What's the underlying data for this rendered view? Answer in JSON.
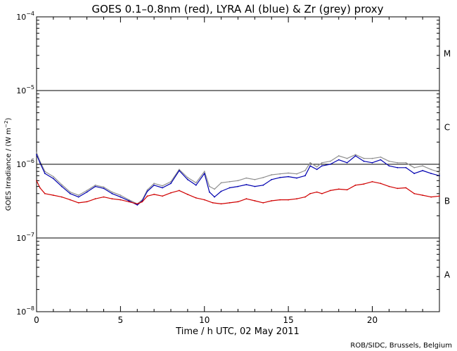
{
  "chart_data": {
    "type": "line",
    "title": "GOES 0.1–0.8nm (red), LYRA Al (blue) & Zr (grey) proxy",
    "xlabel": "Time / h UTC, 02 May 2011",
    "ylabel": "GOES Irradiance / (W m",
    "ylabel_exp": "−2",
    "ylabel_close": ")",
    "credit": "ROB/SIDC, Brussels, Belgium",
    "xlim": [
      0,
      24
    ],
    "ylim_log10": [
      -8,
      -4
    ],
    "yscale": "log",
    "x_ticks": [
      {
        "value": 0,
        "label": "0"
      },
      {
        "value": 5,
        "label": "5"
      },
      {
        "value": 10,
        "label": "10"
      },
      {
        "value": 15,
        "label": "15"
      },
      {
        "value": 20,
        "label": "20"
      }
    ],
    "y_ticks": [
      {
        "exp": -8,
        "base": "10",
        "sup": "−8"
      },
      {
        "exp": -7,
        "base": "10",
        "sup": "−7"
      },
      {
        "exp": -6,
        "base": "10",
        "sup": "−6"
      },
      {
        "exp": -5,
        "base": "10",
        "sup": "−5"
      },
      {
        "exp": -4,
        "base": "10",
        "sup": "−4"
      }
    ],
    "flare_class_lines": [
      -7,
      -6,
      -5
    ],
    "flare_classes": [
      {
        "label": "A",
        "log10": -7.5
      },
      {
        "label": "B",
        "log10": -6.5
      },
      {
        "label": "C",
        "log10": -5.5
      },
      {
        "label": "M",
        "log10": -4.5
      }
    ],
    "colors": {
      "goes": "#d00000",
      "lyra_al": "#0000b0",
      "lyra_zr": "#909090",
      "axes": "#000000"
    },
    "series": [
      {
        "name": "GOES 0.1-0.8nm",
        "color": "#d00000",
        "x": [
          0.0,
          0.2,
          0.5,
          1.0,
          1.5,
          2.0,
          2.5,
          3.0,
          3.5,
          4.0,
          4.5,
          5.0,
          5.5,
          6.0,
          6.3,
          6.6,
          7.0,
          7.5,
          8.0,
          8.5,
          9.0,
          9.5,
          10.0,
          10.5,
          11.0,
          11.5,
          12.0,
          12.5,
          13.0,
          13.5,
          14.0,
          14.5,
          15.0,
          15.5,
          16.0,
          16.3,
          16.7,
          17.0,
          17.5,
          18.0,
          18.5,
          19.0,
          19.5,
          20.0,
          20.5,
          21.0,
          21.5,
          22.0,
          22.5,
          23.0,
          23.5,
          24.0
        ],
        "y": [
          6e-07,
          4.8e-07,
          4e-07,
          3.8e-07,
          3.6e-07,
          3.3e-07,
          3e-07,
          3.1e-07,
          3.4e-07,
          3.6e-07,
          3.4e-07,
          3.3e-07,
          3.1e-07,
          2.9e-07,
          3.1e-07,
          3.7e-07,
          3.9e-07,
          3.7e-07,
          4.1e-07,
          4.4e-07,
          3.9e-07,
          3.5e-07,
          3.3e-07,
          3e-07,
          2.9e-07,
          3e-07,
          3.1e-07,
          3.4e-07,
          3.2e-07,
          3e-07,
          3.2e-07,
          3.3e-07,
          3.3e-07,
          3.4e-07,
          3.6e-07,
          4e-07,
          4.2e-07,
          4e-07,
          4.4e-07,
          4.6e-07,
          4.5e-07,
          5.2e-07,
          5.4e-07,
          5.8e-07,
          5.5e-07,
          5e-07,
          4.7e-07,
          4.8e-07,
          4e-07,
          3.8e-07,
          3.6e-07,
          3.7e-07
        ]
      },
      {
        "name": "LYRA Al proxy",
        "color": "#0000b0",
        "x": [
          0.0,
          0.2,
          0.5,
          1.0,
          1.5,
          2.0,
          2.5,
          3.0,
          3.5,
          4.0,
          4.5,
          5.0,
          5.5,
          6.0,
          6.3,
          6.6,
          7.0,
          7.5,
          8.0,
          8.5,
          9.0,
          9.5,
          10.0,
          10.3,
          10.6,
          11.0,
          11.5,
          12.0,
          12.5,
          13.0,
          13.5,
          14.0,
          14.5,
          15.0,
          15.5,
          16.0,
          16.3,
          16.7,
          17.0,
          17.5,
          18.0,
          18.5,
          19.0,
          19.5,
          20.0,
          20.5,
          21.0,
          21.5,
          22.0,
          22.5,
          23.0,
          23.5,
          24.0
        ],
        "y": [
          1.35e-06,
          1.05e-06,
          7.5e-07,
          6.4e-07,
          5e-07,
          4e-07,
          3.6e-07,
          4.2e-07,
          5e-07,
          4.7e-07,
          4e-07,
          3.6e-07,
          3.2e-07,
          2.8e-07,
          3.2e-07,
          4.3e-07,
          5.2e-07,
          4.8e-07,
          5.5e-07,
          8.2e-07,
          6.2e-07,
          5.2e-07,
          7.5e-07,
          4.2e-07,
          3.6e-07,
          4.3e-07,
          4.8e-07,
          5e-07,
          5.3e-07,
          5e-07,
          5.2e-07,
          6.2e-07,
          6.6e-07,
          6.8e-07,
          6.5e-07,
          7e-07,
          9.5e-07,
          8.5e-07,
          9.5e-07,
          1e-06,
          1.15e-06,
          1.05e-06,
          1.3e-06,
          1.1e-06,
          1.05e-06,
          1.15e-06,
          9.5e-07,
          9e-07,
          9e-07,
          7.5e-07,
          8.2e-07,
          7.5e-07,
          7e-07
        ]
      },
      {
        "name": "LYRA Zr proxy",
        "color": "#909090",
        "x": [
          0.0,
          0.2,
          0.5,
          1.0,
          1.5,
          2.0,
          2.5,
          3.0,
          3.5,
          4.0,
          4.5,
          5.0,
          5.5,
          6.0,
          6.3,
          6.6,
          7.0,
          7.5,
          8.0,
          8.5,
          9.0,
          9.5,
          10.0,
          10.3,
          10.6,
          11.0,
          11.5,
          12.0,
          12.5,
          13.0,
          13.5,
          14.0,
          14.5,
          15.0,
          15.5,
          16.0,
          16.3,
          16.7,
          17.0,
          17.5,
          18.0,
          18.5,
          19.0,
          19.5,
          20.0,
          20.5,
          21.0,
          21.5,
          22.0,
          22.5,
          23.0,
          23.5,
          24.0
        ],
        "y": [
          1.45e-06,
          1.1e-06,
          8e-07,
          6.8e-07,
          5.3e-07,
          4.2e-07,
          3.8e-07,
          4.4e-07,
          5.2e-07,
          4.9e-07,
          4.2e-07,
          3.8e-07,
          3.3e-07,
          2.9e-07,
          3.3e-07,
          4.5e-07,
          5.5e-07,
          5.1e-07,
          5.8e-07,
          8.5e-07,
          6.6e-07,
          5.6e-07,
          8e-07,
          5e-07,
          4.6e-07,
          5.6e-07,
          5.8e-07,
          6e-07,
          6.5e-07,
          6.2e-07,
          6.6e-07,
          7.2e-07,
          7.4e-07,
          7.6e-07,
          7.4e-07,
          8.2e-07,
          1.05e-06,
          9.2e-07,
          1.05e-06,
          1.1e-06,
          1.3e-06,
          1.2e-06,
          1.35e-06,
          1.2e-06,
          1.2e-06,
          1.25e-06,
          1.1e-06,
          1.05e-06,
          1.05e-06,
          9e-07,
          9.5e-07,
          8.5e-07,
          7.8e-07
        ]
      }
    ]
  }
}
